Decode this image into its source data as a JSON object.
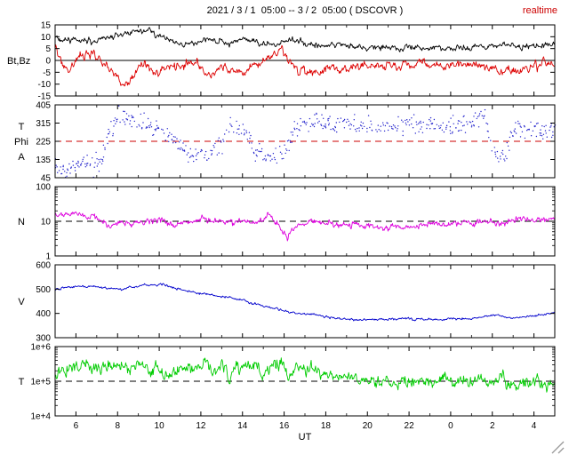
{
  "header": {
    "title": "2021 / 3 / 1  05:00 -- 3 / 2  05:00 ( DSCOVR )",
    "realtime": "realtime",
    "realtime_color": "#cc0000"
  },
  "x_axis": {
    "label": "UT",
    "range": [
      5,
      29
    ],
    "ticks": [
      6,
      8,
      10,
      12,
      14,
      16,
      18,
      20,
      22,
      24,
      26,
      28
    ],
    "tick_labels": [
      "6",
      "8",
      "10",
      "12",
      "14",
      "16",
      "18",
      "20",
      "22",
      "0",
      "2",
      "4"
    ]
  },
  "chart_data": [
    {
      "name": "bt_bz",
      "type": "line",
      "scale": "linear",
      "ylim": [
        -15,
        15
      ],
      "yticks": [
        -15,
        -10,
        -5,
        0,
        5,
        10,
        15
      ],
      "ytick_labels": [
        "-15",
        "-10",
        "-5",
        "0",
        "5",
        "10",
        "15"
      ],
      "ylabel_lines": [
        "Bt,Bz"
      ],
      "refline": {
        "value": 0,
        "dash": false,
        "color": "#000000"
      },
      "series": [
        {
          "name": "Bt",
          "color": "#000000",
          "noise": 0.7,
          "noise_mode": "abs",
          "x": [
            5.0,
            5.2,
            5.5,
            6.0,
            6.5,
            7.0,
            7.5,
            8.0,
            8.5,
            9.0,
            9.5,
            10.0,
            10.4,
            10.8,
            11.2,
            11.6,
            12.0,
            12.4,
            12.8,
            13.2,
            13.6,
            14.0,
            14.4,
            14.8,
            15.2,
            15.6,
            16.0,
            16.4,
            16.8,
            17.2,
            17.6,
            18.0,
            18.5,
            19.0,
            19.5,
            20.0,
            20.5,
            21.0,
            21.5,
            22.0,
            22.5,
            23.0,
            23.5,
            24.0,
            24.5,
            25.0,
            25.5,
            26.0,
            26.4,
            26.8,
            27.2,
            27.6,
            28.0,
            28.4,
            28.8,
            29.0
          ],
          "y": [
            10.5,
            8,
            8.5,
            9,
            8.5,
            8,
            9,
            10.5,
            12,
            12.5,
            12,
            10.5,
            9,
            7.5,
            7,
            7.5,
            8,
            9,
            7.5,
            7,
            8,
            9.5,
            8.5,
            7.5,
            7,
            6.5,
            7.5,
            9,
            7.5,
            6.5,
            6,
            6,
            6.5,
            6,
            5.5,
            5.5,
            5,
            5.5,
            5,
            5.5,
            5,
            5,
            5.5,
            5,
            5.5,
            5,
            5.5,
            6,
            7,
            6.5,
            5.5,
            5,
            5.5,
            6,
            6.5,
            6.5
          ]
        },
        {
          "name": "Bz",
          "color": "#dd0000",
          "noise": 1.0,
          "noise_mode": "abs",
          "x": [
            5.0,
            5.2,
            5.4,
            5.7,
            6.0,
            6.4,
            6.8,
            7.2,
            7.6,
            8.0,
            8.3,
            8.6,
            9.0,
            9.4,
            9.8,
            10.2,
            10.6,
            11.0,
            11.4,
            11.8,
            12.2,
            12.5,
            12.8,
            13.2,
            13.6,
            14.0,
            14.4,
            14.8,
            15.2,
            15.6,
            15.9,
            16.2,
            16.6,
            17.0,
            17.4,
            17.8,
            18.2,
            18.6,
            19.0,
            19.5,
            20.0,
            20.5,
            21.0,
            21.5,
            22.0,
            22.5,
            23.0,
            23.5,
            24.0,
            24.5,
            25.0,
            25.5,
            26.0,
            26.5,
            27.0,
            27.5,
            28.0,
            28.5,
            29.0
          ],
          "y": [
            5,
            3,
            -3,
            -4,
            0,
            2,
            3,
            -1,
            -4,
            -8,
            -11,
            -9,
            -3,
            -2,
            -5,
            -4,
            -3,
            -2,
            -1,
            -2,
            -5,
            -7,
            -3,
            -2,
            -4,
            -5,
            -3,
            -1,
            0,
            3,
            5,
            0,
            -3,
            -4,
            -5,
            -4,
            -3,
            -4,
            -3,
            -2,
            -4,
            -3,
            -2,
            -3,
            -2,
            -1,
            -2,
            -3,
            -2,
            -1,
            -2,
            -2,
            -3,
            -5,
            -4,
            -3,
            -2,
            -1,
            -2
          ]
        }
      ]
    },
    {
      "name": "phi",
      "type": "scatter",
      "scale": "linear",
      "ylim": [
        45,
        405
      ],
      "yticks": [
        45,
        135,
        225,
        315,
        405
      ],
      "ytick_labels": [
        "45",
        "135",
        "225",
        "315",
        "405"
      ],
      "ylabel_lines": [
        "T",
        "Phi",
        "A"
      ],
      "refline": {
        "value": 225,
        "dash": true,
        "color": "#cc0000"
      },
      "series": [
        {
          "name": "Phi",
          "color": "#2222cc",
          "noise": 22,
          "noise_mode": "abs",
          "x": [
            5.0,
            5.5,
            6.0,
            6.5,
            7.0,
            7.3,
            7.6,
            8.0,
            8.5,
            9.0,
            9.5,
            10.0,
            10.3,
            10.6,
            11.0,
            11.5,
            12.0,
            12.5,
            13.0,
            13.3,
            13.6,
            14.0,
            14.3,
            14.6,
            15.0,
            15.5,
            16.0,
            16.5,
            17.0,
            17.5,
            18.0,
            18.5,
            19.0,
            19.5,
            20.0,
            20.5,
            21.0,
            21.5,
            22.0,
            22.5,
            23.0,
            23.5,
            24.0,
            24.5,
            25.0,
            25.3,
            25.6,
            26.0,
            26.3,
            26.6,
            27.0,
            27.5,
            28.0,
            28.5,
            29.0
          ],
          "y": [
            100,
            80,
            110,
            130,
            90,
            150,
            280,
            330,
            340,
            330,
            300,
            280,
            260,
            230,
            200,
            160,
            150,
            180,
            200,
            290,
            300,
            270,
            260,
            180,
            150,
            140,
            160,
            290,
            310,
            320,
            315,
            310,
            320,
            310,
            300,
            290,
            300,
            310,
            320,
            300,
            310,
            290,
            300,
            310,
            320,
            330,
            350,
            200,
            160,
            150,
            280,
            290,
            300,
            280,
            290
          ]
        }
      ]
    },
    {
      "name": "n",
      "type": "line",
      "scale": "log",
      "ylim": [
        1,
        100
      ],
      "yticks": [
        1,
        10,
        100
      ],
      "ytick_labels": [
        "1",
        "10",
        "100"
      ],
      "ylabel_lines": [
        "N"
      ],
      "refline": {
        "value": 10,
        "dash": true,
        "color": "#000000"
      },
      "series": [
        {
          "name": "N",
          "color": "#dd00dd",
          "noise": 0.05,
          "noise_mode": "log",
          "x": [
            5.0,
            5.5,
            6.0,
            6.5,
            7.0,
            7.3,
            7.6,
            8.0,
            8.5,
            9.0,
            9.5,
            10.0,
            10.5,
            11.0,
            11.5,
            12.0,
            12.5,
            13.0,
            13.5,
            14.0,
            14.5,
            15.0,
            15.3,
            15.6,
            15.9,
            16.2,
            16.5,
            17.0,
            17.5,
            18.0,
            18.5,
            19.0,
            19.5,
            20.0,
            21.0,
            22.0,
            23.0,
            24.0,
            25.0,
            26.0,
            26.5,
            27.0,
            27.5,
            28.0,
            28.5,
            29.0
          ],
          "y": [
            16,
            15,
            15,
            14,
            13,
            10,
            8,
            8,
            9,
            10,
            10,
            11,
            9,
            8,
            10,
            11,
            9,
            10,
            9,
            11,
            10,
            12,
            15,
            9,
            5,
            4,
            6,
            9,
            10,
            9,
            8,
            9,
            8,
            8,
            7,
            7,
            8,
            8,
            9,
            10,
            9,
            10,
            11,
            10,
            12,
            13
          ]
        }
      ]
    },
    {
      "name": "v",
      "type": "line",
      "scale": "linear",
      "ylim": [
        300,
        600
      ],
      "yticks": [
        300,
        400,
        500,
        600
      ],
      "ytick_labels": [
        "300",
        "400",
        "500",
        "600"
      ],
      "ylabel_lines": [
        "V"
      ],
      "refline": null,
      "series": [
        {
          "name": "V",
          "color": "#0000cc",
          "noise": 2.5,
          "noise_mode": "abs",
          "x": [
            5.0,
            5.5,
            6.0,
            6.5,
            7.0,
            7.5,
            8.0,
            8.5,
            9.0,
            9.3,
            9.6,
            10.0,
            10.5,
            11.0,
            11.5,
            12.0,
            12.5,
            13.0,
            13.5,
            14.0,
            14.5,
            15.0,
            15.5,
            16.0,
            16.5,
            17.0,
            17.5,
            18.0,
            18.5,
            19.0,
            19.5,
            20.0,
            21.0,
            22.0,
            23.0,
            24.0,
            25.0,
            25.5,
            26.0,
            26.3,
            26.6,
            27.0,
            27.5,
            28.0,
            28.5,
            29.0
          ],
          "y": [
            500,
            505,
            510,
            512,
            508,
            505,
            500,
            505,
            512,
            520,
            515,
            518,
            510,
            500,
            490,
            480,
            475,
            470,
            462,
            452,
            440,
            430,
            420,
            412,
            405,
            398,
            392,
            385,
            380,
            378,
            376,
            375,
            376,
            378,
            375,
            376,
            380,
            385,
            395,
            392,
            385,
            383,
            385,
            388,
            395,
            405
          ]
        }
      ]
    },
    {
      "name": "t",
      "type": "line",
      "scale": "log",
      "ylim": [
        10000,
        1000000
      ],
      "yticks": [
        10000,
        100000,
        1000000
      ],
      "ytick_labels": [
        "1e+4",
        "1e+5",
        "1e+6"
      ],
      "ylabel_lines": [
        "T"
      ],
      "refline": {
        "value": 100000,
        "dash": true,
        "color": "#000000"
      },
      "series": [
        {
          "name": "T",
          "color": "#00cc00",
          "noise": 0.1,
          "noise_mode": "log",
          "x": [
            5.0,
            5.5,
            6.0,
            6.5,
            7.0,
            7.5,
            8.0,
            8.5,
            9.0,
            9.5,
            10.0,
            10.5,
            11.0,
            11.5,
            12.0,
            12.3,
            12.6,
            13.0,
            13.4,
            13.8,
            14.2,
            14.6,
            15.0,
            15.4,
            15.8,
            16.2,
            16.6,
            17.0,
            17.5,
            18.0,
            18.5,
            19.0,
            19.5,
            20.0,
            20.5,
            21.0,
            22.0,
            23.0,
            24.0,
            25.0,
            26.0,
            26.5,
            27.0,
            27.5,
            28.0,
            28.5,
            29.0
          ],
          "y": [
            150000,
            200000,
            280000,
            300000,
            250000,
            280000,
            300000,
            260000,
            280000,
            250000,
            220000,
            180000,
            200000,
            180000,
            250000,
            350000,
            150000,
            220000,
            120000,
            300000,
            200000,
            350000,
            150000,
            250000,
            300000,
            120000,
            280000,
            200000,
            180000,
            160000,
            140000,
            130000,
            120000,
            115000,
            110000,
            105000,
            100000,
            95000,
            95000,
            90000,
            85000,
            100000,
            90000,
            85000,
            90000,
            85000,
            90000
          ]
        }
      ]
    }
  ]
}
